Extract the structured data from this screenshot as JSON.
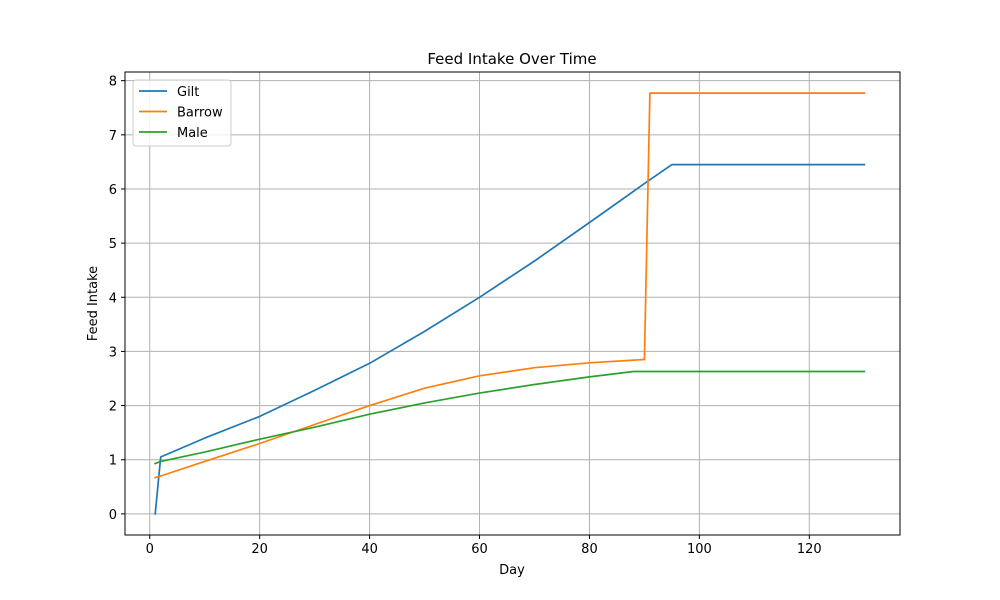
{
  "chart_data": {
    "type": "line",
    "title": "Feed Intake Over Time",
    "xlabel": "Day",
    "ylabel": "Feed Intake",
    "xlim": [
      -4.5,
      136.5
    ],
    "ylim": [
      -0.39,
      8.16
    ],
    "xticks": [
      0,
      20,
      40,
      60,
      80,
      100,
      120
    ],
    "yticks": [
      0,
      1,
      2,
      3,
      4,
      5,
      6,
      7,
      8
    ],
    "grid": true,
    "legend_position": "upper-left",
    "series": [
      {
        "name": "Gilt",
        "color": "#1f77b4",
        "x": [
          1,
          2,
          10,
          20,
          30,
          40,
          50,
          60,
          70,
          80,
          90,
          95,
          100,
          110,
          120,
          130
        ],
        "y": [
          0,
          1.05,
          1.4,
          1.8,
          2.28,
          2.78,
          3.37,
          4.0,
          4.67,
          5.38,
          6.1,
          6.45,
          6.45,
          6.45,
          6.45,
          6.45
        ]
      },
      {
        "name": "Barrow",
        "color": "#ff7f0e",
        "x": [
          1,
          2,
          10,
          20,
          30,
          40,
          50,
          60,
          70,
          80,
          90,
          91,
          100,
          110,
          120,
          130
        ],
        "y": [
          0.67,
          0.7,
          0.97,
          1.3,
          1.65,
          2.0,
          2.32,
          2.55,
          2.7,
          2.79,
          2.85,
          7.77,
          7.77,
          7.77,
          7.77,
          7.77
        ]
      },
      {
        "name": "Male",
        "color": "#2ca02c",
        "x": [
          1,
          2,
          10,
          20,
          30,
          40,
          50,
          60,
          70,
          80,
          88,
          100,
          110,
          120,
          130
        ],
        "y": [
          0.93,
          0.97,
          1.14,
          1.38,
          1.6,
          1.84,
          2.05,
          2.23,
          2.39,
          2.53,
          2.63,
          2.63,
          2.63,
          2.63,
          2.63
        ]
      }
    ]
  }
}
